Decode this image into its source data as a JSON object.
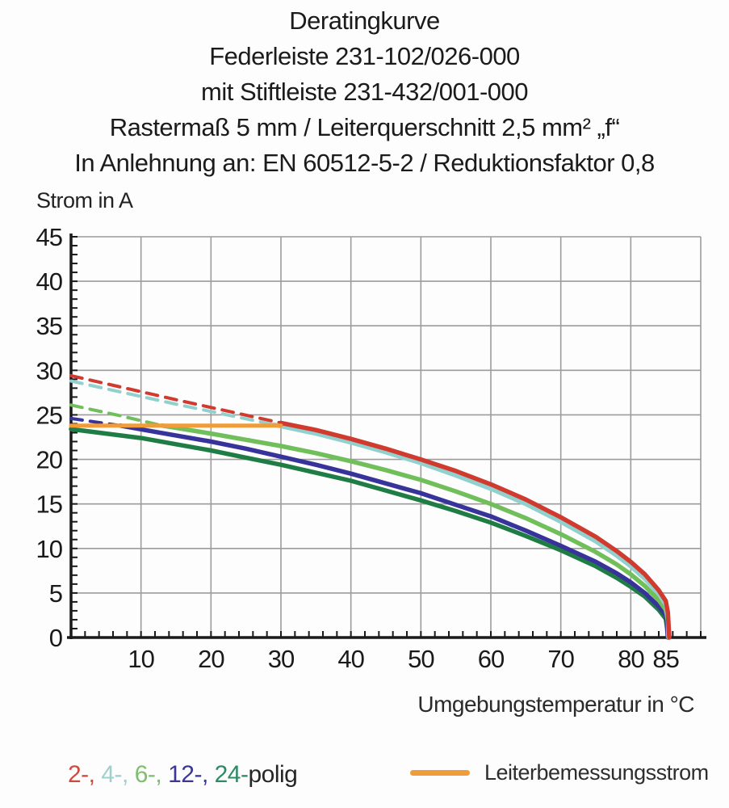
{
  "header": {
    "lines": [
      "Deratingkurve",
      "Federleiste 231-102/026-000",
      "mit Stiftleiste 231-432/001-000",
      "Rastermaß 5 mm / Leiterquerschnitt 2,5 mm² „f“",
      "In Anlehnung an: EN 60512-5-2 / Reduktionsfaktor 0,8"
    ]
  },
  "chart_data": {
    "type": "line",
    "title": "Deratingkurve",
    "xlabel": "Umgebungstemperatur in °C",
    "ylabel": "Strom in A",
    "xlim": [
      0,
      90
    ],
    "ylim": [
      0,
      45
    ],
    "x_ticks": [
      10,
      20,
      30,
      40,
      50,
      60,
      70,
      80,
      85
    ],
    "y_ticks": [
      0,
      5,
      10,
      15,
      20,
      25,
      30,
      35,
      40,
      45
    ],
    "grid": true,
    "grid_color": "#9c9c9c",
    "axis_color": "#1a1a1a",
    "legend_position": "bottom",
    "series": [
      {
        "name": "2-polig",
        "color": "#d13a2e",
        "dashed_lead_in": [
          [
            0,
            29.4
          ],
          [
            15,
            26.7
          ],
          [
            30,
            24.1
          ]
        ],
        "points": [
          [
            30,
            24.1
          ],
          [
            35,
            23.3
          ],
          [
            40,
            22.3
          ],
          [
            45,
            21.2
          ],
          [
            50,
            20.0
          ],
          [
            55,
            18.7
          ],
          [
            60,
            17.2
          ],
          [
            65,
            15.5
          ],
          [
            70,
            13.5
          ],
          [
            75,
            11.3
          ],
          [
            78,
            9.7
          ],
          [
            80,
            8.5
          ],
          [
            82,
            7.1
          ],
          [
            84,
            5.3
          ],
          [
            85,
            4.1
          ],
          [
            85.3,
            2.8
          ],
          [
            85.5,
            0
          ]
        ]
      },
      {
        "name": "4-polig",
        "color": "#92d0cd",
        "dashed_lead_in": [
          [
            0,
            28.8
          ],
          [
            15,
            26.2
          ],
          [
            29,
            23.9
          ]
        ],
        "points": [
          [
            29,
            23.9
          ],
          [
            35,
            22.9
          ],
          [
            40,
            21.9
          ],
          [
            45,
            20.8
          ],
          [
            50,
            19.6
          ],
          [
            55,
            18.2
          ],
          [
            60,
            16.7
          ],
          [
            65,
            15.0
          ],
          [
            70,
            13.0
          ],
          [
            75,
            10.8
          ],
          [
            78,
            9.2
          ],
          [
            80,
            8.0
          ],
          [
            82,
            6.6
          ],
          [
            84,
            4.9
          ],
          [
            85,
            3.7
          ],
          [
            85.3,
            2.4
          ],
          [
            85.4,
            0
          ]
        ]
      },
      {
        "name": "6-polig",
        "color": "#70bf5a",
        "dashed_lead_in": [
          [
            0,
            26.1
          ],
          [
            7,
            24.9
          ],
          [
            13,
            23.8
          ]
        ],
        "points": [
          [
            13,
            23.8
          ],
          [
            20,
            22.9
          ],
          [
            25,
            22.2
          ],
          [
            30,
            21.5
          ],
          [
            35,
            20.7
          ],
          [
            40,
            19.8
          ],
          [
            45,
            18.8
          ],
          [
            50,
            17.7
          ],
          [
            55,
            16.4
          ],
          [
            60,
            15.0
          ],
          [
            65,
            13.4
          ],
          [
            70,
            11.6
          ],
          [
            75,
            9.6
          ],
          [
            78,
            8.2
          ],
          [
            80,
            7.1
          ],
          [
            82,
            5.8
          ],
          [
            84,
            4.2
          ],
          [
            85,
            3.1
          ],
          [
            85.3,
            1.9
          ],
          [
            85.4,
            0
          ]
        ]
      },
      {
        "name": "12-polig",
        "color": "#37339a",
        "dashed_lead_in": [
          [
            0,
            24.6
          ],
          [
            7,
            23.8
          ]
        ],
        "points": [
          [
            7,
            23.8
          ],
          [
            12,
            23.1
          ],
          [
            20,
            22.0
          ],
          [
            25,
            21.2
          ],
          [
            30,
            20.3
          ],
          [
            35,
            19.4
          ],
          [
            40,
            18.4
          ],
          [
            45,
            17.3
          ],
          [
            50,
            16.2
          ],
          [
            55,
            14.9
          ],
          [
            60,
            13.6
          ],
          [
            65,
            12.0
          ],
          [
            70,
            10.3
          ],
          [
            75,
            8.5
          ],
          [
            78,
            7.2
          ],
          [
            80,
            6.2
          ],
          [
            82,
            5.0
          ],
          [
            84,
            3.5
          ],
          [
            85,
            2.5
          ],
          [
            85.2,
            1.4
          ],
          [
            85.3,
            0
          ]
        ]
      },
      {
        "name": "24-polig",
        "color": "#1f7c44",
        "points": [
          [
            0,
            23.4
          ],
          [
            5,
            22.9
          ],
          [
            10,
            22.4
          ],
          [
            15,
            21.7
          ],
          [
            20,
            21.0
          ],
          [
            25,
            20.2
          ],
          [
            30,
            19.4
          ],
          [
            35,
            18.5
          ],
          [
            40,
            17.6
          ],
          [
            45,
            16.5
          ],
          [
            50,
            15.4
          ],
          [
            55,
            14.2
          ],
          [
            60,
            12.9
          ],
          [
            65,
            11.4
          ],
          [
            70,
            9.8
          ],
          [
            75,
            8.0
          ],
          [
            78,
            6.7
          ],
          [
            80,
            5.7
          ],
          [
            82,
            4.6
          ],
          [
            84,
            3.1
          ],
          [
            85,
            2.1
          ],
          [
            85.2,
            1.0
          ],
          [
            85.3,
            0
          ]
        ]
      }
    ],
    "rated_current": {
      "name": "Leiterbemessungsstrom",
      "color": "#f09c3a",
      "points": [
        [
          0,
          23.8
        ],
        [
          30,
          23.8
        ]
      ]
    }
  },
  "legend": {
    "poles": [
      {
        "label": "2-",
        "color": "#cc4a40"
      },
      {
        "label": "4-",
        "color": "#9ed0cd"
      },
      {
        "label": "6-",
        "color": "#7cc06b"
      },
      {
        "label": "12-",
        "color": "#3c3796"
      },
      {
        "label": "24-",
        "color": "#2e8a63"
      }
    ],
    "poles_suffix": "polig",
    "rated_current_label": "Leiterbemessungsstrom",
    "rated_current_color": "#f09c3a"
  }
}
